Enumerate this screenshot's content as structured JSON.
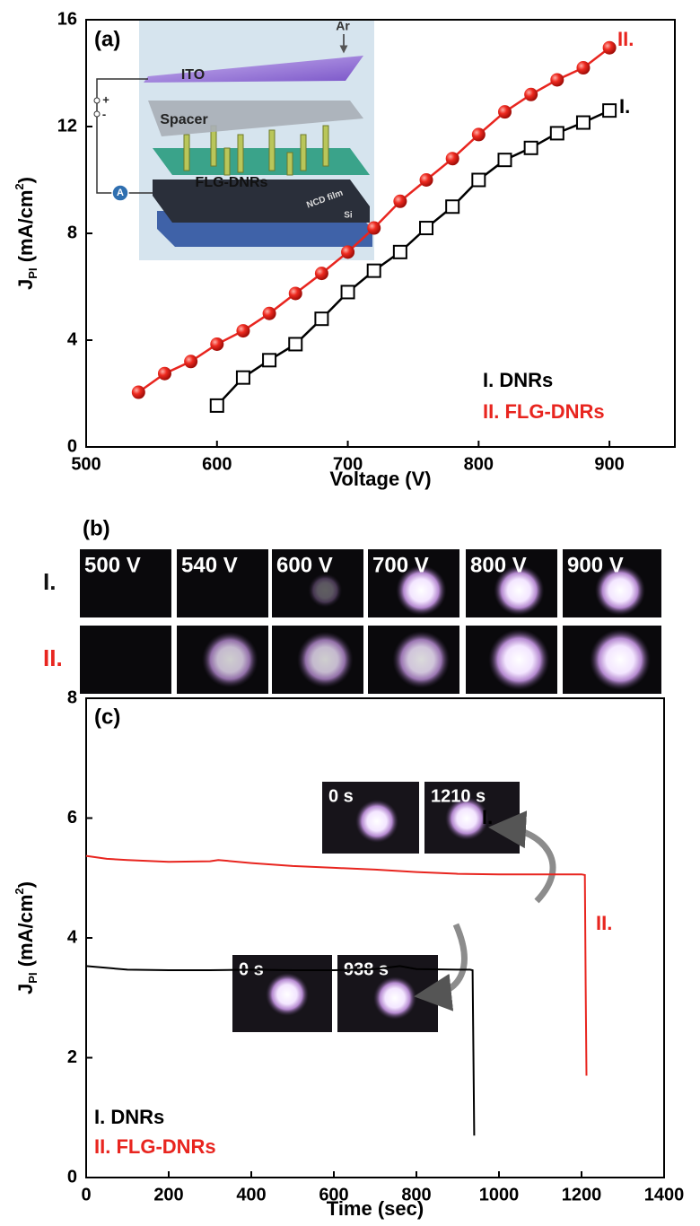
{
  "chart_data": [
    {
      "type": "line",
      "panel": "(a)",
      "xlabel": "Voltage (V)",
      "ylabel": [
        "J",
        "PI",
        " (mA/cm",
        "2",
        ")"
      ],
      "xlim": [
        500,
        950
      ],
      "xticks": [
        500,
        600,
        700,
        800,
        900
      ],
      "ylim": [
        0,
        16
      ],
      "yticks": [
        0,
        4,
        8,
        12,
        16
      ],
      "markers": true,
      "inset_labels": [
        "ITO",
        "Ar",
        "Spacer",
        "FLG-DNRs",
        "NCD film",
        "Si",
        "A",
        "+",
        "-"
      ],
      "series": [
        {
          "name": "I. DNRs",
          "label": "I.",
          "color": "#000000",
          "marker": "square",
          "x": [
            600,
            620,
            640,
            660,
            680,
            700,
            720,
            740,
            760,
            780,
            800,
            820,
            840,
            860,
            880,
            900
          ],
          "values": [
            1.55,
            2.6,
            3.25,
            3.85,
            4.8,
            5.8,
            6.6,
            7.3,
            8.2,
            9.0,
            10.0,
            10.75,
            11.2,
            11.75,
            12.15,
            12.6
          ]
        },
        {
          "name": "II. FLG-DNRs",
          "label": "II.",
          "color": "#e8251f",
          "marker": "circle",
          "x": [
            540,
            560,
            580,
            600,
            620,
            640,
            660,
            680,
            700,
            720,
            740,
            760,
            780,
            800,
            820,
            840,
            860,
            880,
            900
          ],
          "values": [
            2.05,
            2.75,
            3.2,
            3.85,
            4.35,
            5.0,
            5.75,
            6.5,
            7.3,
            8.2,
            9.2,
            10.0,
            10.8,
            11.7,
            12.55,
            13.2,
            13.75,
            14.2,
            14.95
          ]
        }
      ]
    },
    {
      "type": "line",
      "panel": "(c)",
      "xlabel": "Time (sec)",
      "ylabel": [
        "J",
        "PI",
        " (mA/cm",
        "2",
        ")"
      ],
      "xlim": [
        0,
        1400
      ],
      "xticks": [
        0,
        200,
        400,
        600,
        800,
        1000,
        1200,
        1400
      ],
      "ylim": [
        0,
        8
      ],
      "yticks": [
        0,
        2,
        4,
        6,
        8
      ],
      "markers": false,
      "photo_labels": [
        "0 s",
        "1210 s",
        "0 s",
        "938 s"
      ],
      "series": [
        {
          "name": "I. DNRs",
          "label": "I.",
          "color": "#000000",
          "x": [
            0,
            100,
            200,
            300,
            400,
            500,
            600,
            700,
            760,
            800,
            900,
            930,
            936,
            938,
            940
          ],
          "values": [
            3.53,
            3.47,
            3.46,
            3.46,
            3.47,
            3.46,
            3.46,
            3.48,
            3.53,
            3.48,
            3.47,
            3.47,
            3.46,
            2.1,
            0.7
          ]
        },
        {
          "name": "II. FLG-DNRs",
          "label": "II.",
          "color": "#e8251f",
          "x": [
            0,
            50,
            100,
            200,
            300,
            320,
            400,
            500,
            600,
            700,
            800,
            900,
            1000,
            1100,
            1200,
            1208,
            1210,
            1212
          ],
          "values": [
            5.37,
            5.32,
            5.3,
            5.27,
            5.28,
            5.3,
            5.25,
            5.2,
            5.17,
            5.14,
            5.1,
            5.07,
            5.06,
            5.06,
            5.06,
            5.05,
            3.2,
            1.7
          ]
        }
      ]
    }
  ],
  "panel_b": {
    "label": "(b)",
    "rows": [
      "I.",
      "II."
    ],
    "voltages": [
      "500 V",
      "540 V",
      "600 V",
      "700 V",
      "800 V",
      "900 V"
    ]
  }
}
